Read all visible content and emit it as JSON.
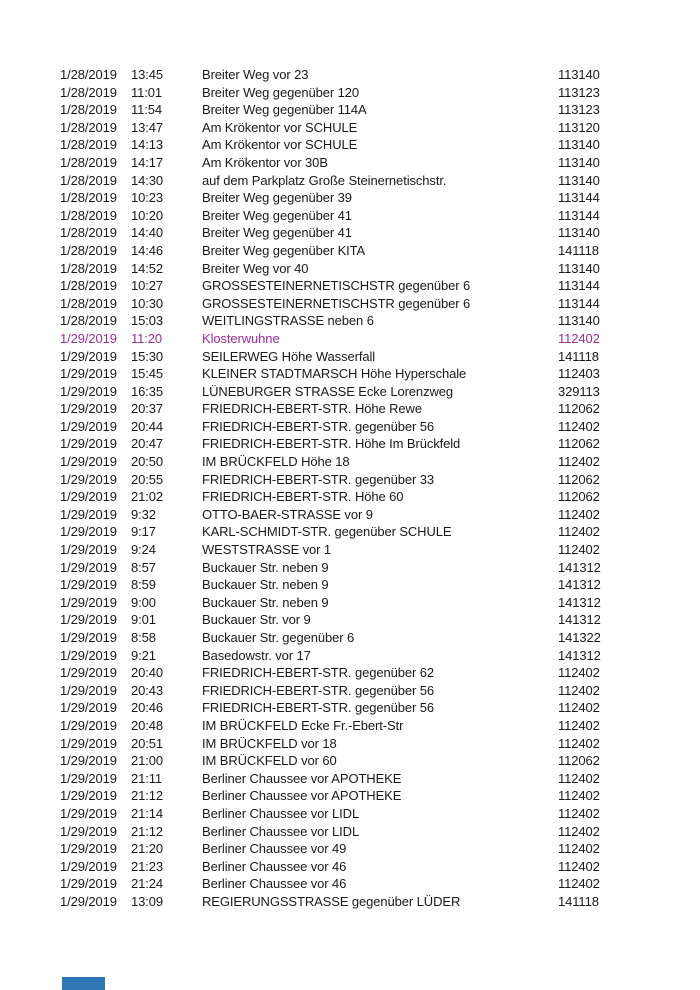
{
  "colors": {
    "text": "#1a1a1a",
    "highlight": "#9b2d9b",
    "marker": "#2e75b6",
    "background": "#ffffff"
  },
  "table": {
    "columns": [
      "date",
      "time",
      "location",
      "code"
    ],
    "rows": [
      {
        "date": "1/28/2019",
        "time": "13:45",
        "location": "Breiter Weg vor 23",
        "code": "113140"
      },
      {
        "date": "1/28/2019",
        "time": "11:01",
        "location": "Breiter Weg gegenüber 120",
        "code": "113123"
      },
      {
        "date": "1/28/2019",
        "time": "11:54",
        "location": "Breiter Weg gegenüber 114A",
        "code": "113123"
      },
      {
        "date": "1/28/2019",
        "time": "13:47",
        "location": "Am Krökentor vor SCHULE",
        "code": "113120"
      },
      {
        "date": "1/28/2019",
        "time": "14:13",
        "location": "Am Krökentor vor SCHULE",
        "code": "113140"
      },
      {
        "date": "1/28/2019",
        "time": "14:17",
        "location": "Am Krökentor vor 30B",
        "code": "113140"
      },
      {
        "date": "1/28/2019",
        "time": "14:30",
        "location": "auf dem Parkplatz Große Steinernetischstr.",
        "code": "113140"
      },
      {
        "date": "1/28/2019",
        "time": "10:23",
        "location": "Breiter Weg gegenüber 39",
        "code": "113144"
      },
      {
        "date": "1/28/2019",
        "time": "10:20",
        "location": "Breiter Weg gegenüber 41",
        "code": "113144"
      },
      {
        "date": "1/28/2019",
        "time": "14:40",
        "location": "Breiter Weg gegenüber 41",
        "code": "113140"
      },
      {
        "date": "1/28/2019",
        "time": "14:46",
        "location": "Breiter Weg gegenüber KITA",
        "code": "141118"
      },
      {
        "date": "1/28/2019",
        "time": "14:52",
        "location": "Breiter Weg vor 40",
        "code": "113140"
      },
      {
        "date": "1/28/2019",
        "time": "10:27",
        "location": "GROSSESTEINERNETISCHSTR gegenüber 6",
        "code": "113144"
      },
      {
        "date": "1/28/2019",
        "time": "10:30",
        "location": "GROSSESTEINERNETISCHSTR gegenüber 6",
        "code": "113144"
      },
      {
        "date": "1/28/2019",
        "time": "15:03",
        "location": "WEITLINGSTRASSE neben 6",
        "code": "113140"
      },
      {
        "date": "1/29/2019",
        "time": "11:20",
        "location": "Klosterwuhne",
        "code": "112402",
        "highlight": true
      },
      {
        "date": "1/29/2019",
        "time": "15:30",
        "location": "SEILERWEG Höhe Wasserfall",
        "code": "141118"
      },
      {
        "date": "1/29/2019",
        "time": "15:45",
        "location": "KLEINER STADTMARSCH Höhe Hyperschale",
        "code": "112403"
      },
      {
        "date": "1/29/2019",
        "time": "16:35",
        "location": "LÜNEBURGER STRASSE Ecke Lorenzweg",
        "code": "329113"
      },
      {
        "date": "1/29/2019",
        "time": "20:37",
        "location": "FRIEDRICH-EBERT-STR. Höhe Rewe",
        "code": "112062"
      },
      {
        "date": "1/29/2019",
        "time": "20:44",
        "location": "FRIEDRICH-EBERT-STR. gegenüber 56",
        "code": "112402"
      },
      {
        "date": "1/29/2019",
        "time": "20:47",
        "location": "FRIEDRICH-EBERT-STR. Höhe Im Brückfeld",
        "code": "112062"
      },
      {
        "date": "1/29/2019",
        "time": "20:50",
        "location": "IM BRÜCKFELD Höhe 18",
        "code": "112402"
      },
      {
        "date": "1/29/2019",
        "time": "20:55",
        "location": "FRIEDRICH-EBERT-STR. gegenüber 33",
        "code": "112062"
      },
      {
        "date": "1/29/2019",
        "time": "21:02",
        "location": "FRIEDRICH-EBERT-STR. Höhe 60",
        "code": "112062"
      },
      {
        "date": "1/29/2019",
        "time": "9:32",
        "location": "OTTO-BAER-STRASSE vor 9",
        "code": "112402"
      },
      {
        "date": "1/29/2019",
        "time": "9:17",
        "location": "KARL-SCHMIDT-STR. gegenüber SCHULE",
        "code": "112402"
      },
      {
        "date": "1/29/2019",
        "time": "9:24",
        "location": "WESTSTRASSE vor 1",
        "code": "112402"
      },
      {
        "date": "1/29/2019",
        "time": "8:57",
        "location": "Buckauer Str. neben 9",
        "code": "141312"
      },
      {
        "date": "1/29/2019",
        "time": "8:59",
        "location": "Buckauer Str. neben 9",
        "code": "141312"
      },
      {
        "date": "1/29/2019",
        "time": "9:00",
        "location": "Buckauer Str. neben 9",
        "code": "141312"
      },
      {
        "date": "1/29/2019",
        "time": "9:01",
        "location": "Buckauer Str. vor 9",
        "code": "141312"
      },
      {
        "date": "1/29/2019",
        "time": "8:58",
        "location": "Buckauer Str. gegenüber 6",
        "code": "141322"
      },
      {
        "date": "1/29/2019",
        "time": "9:21",
        "location": "Basedowstr. vor 17",
        "code": "141312"
      },
      {
        "date": "1/29/2019",
        "time": "20:40",
        "location": "FRIEDRICH-EBERT-STR. gegenüber 62",
        "code": "112402"
      },
      {
        "date": "1/29/2019",
        "time": "20:43",
        "location": "FRIEDRICH-EBERT-STR. gegenüber 56",
        "code": "112402"
      },
      {
        "date": "1/29/2019",
        "time": "20:46",
        "location": "FRIEDRICH-EBERT-STR. gegenüber 56",
        "code": "112402"
      },
      {
        "date": "1/29/2019",
        "time": "20:48",
        "location": "IM BRÜCKFELD Ecke Fr.-Ebert-Str",
        "code": "112402"
      },
      {
        "date": "1/29/2019",
        "time": "20:51",
        "location": "IM BRÜCKFELD vor 18",
        "code": "112402"
      },
      {
        "date": "1/29/2019",
        "time": "21:00",
        "location": "IM BRÜCKFELD vor 60",
        "code": "112062"
      },
      {
        "date": "1/29/2019",
        "time": "21:11",
        "location": "Berliner Chaussee vor APOTHEKE",
        "code": "112402"
      },
      {
        "date": "1/29/2019",
        "time": "21:12",
        "location": "Berliner Chaussee vor APOTHEKE",
        "code": "112402"
      },
      {
        "date": "1/29/2019",
        "time": "21:14",
        "location": "Berliner Chaussee vor LIDL",
        "code": "112402"
      },
      {
        "date": "1/29/2019",
        "time": "21:12",
        "location": "Berliner Chaussee vor LIDL",
        "code": "112402"
      },
      {
        "date": "1/29/2019",
        "time": "21:20",
        "location": "Berliner Chaussee vor 49",
        "code": "112402"
      },
      {
        "date": "1/29/2019",
        "time": "21:23",
        "location": "Berliner Chaussee vor 46",
        "code": "112402"
      },
      {
        "date": "1/29/2019",
        "time": "21:24",
        "location": "Berliner Chaussee vor 46",
        "code": "112402"
      },
      {
        "date": "1/29/2019",
        "time": "13:09",
        "location": "REGIERUNGSSTRASSE gegenüber LÜDER",
        "code": "141118"
      }
    ]
  }
}
